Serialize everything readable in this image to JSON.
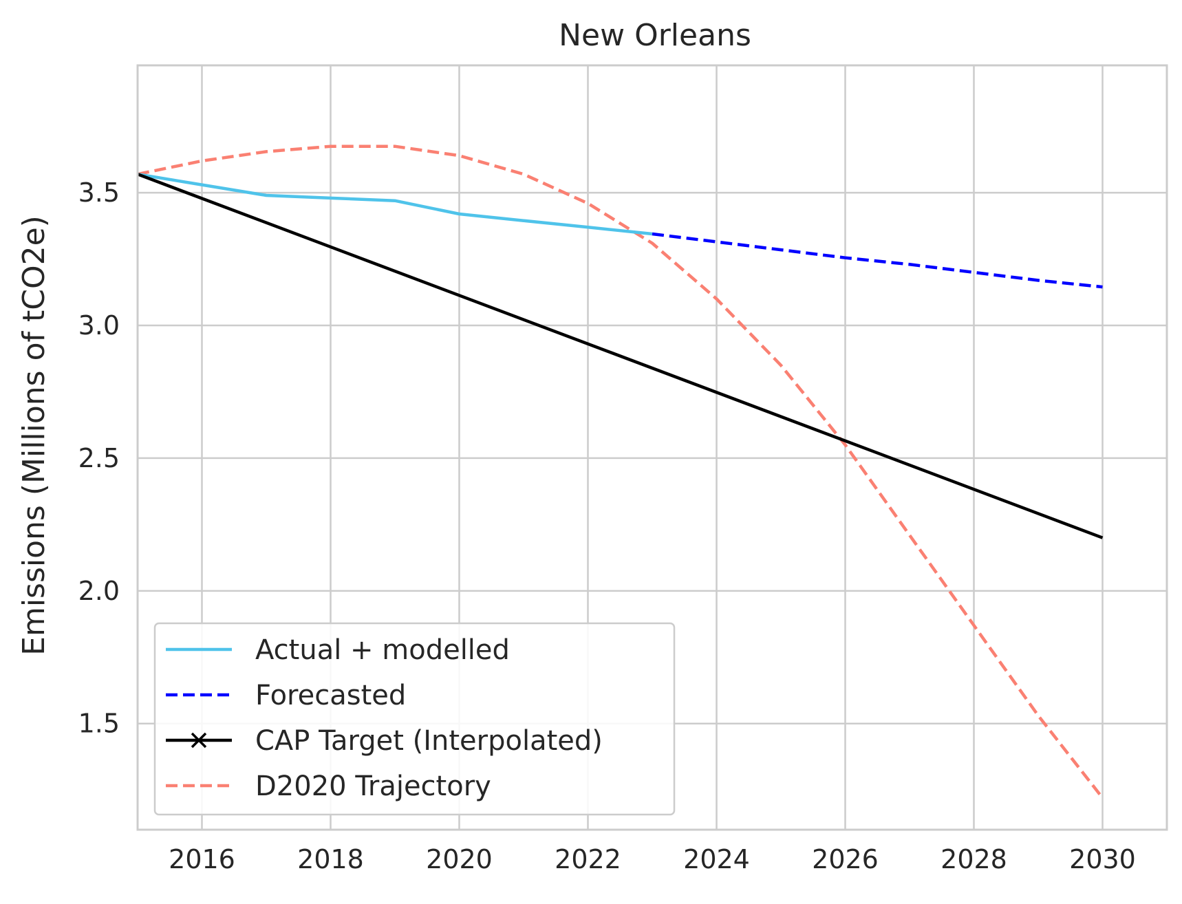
{
  "chart_data": {
    "type": "line",
    "title": "New Orleans",
    "xlabel": "",
    "ylabel": "Emissions (Millions of tCO2e)",
    "xlim": [
      2015,
      2031
    ],
    "ylim": [
      1.1,
      3.98
    ],
    "x_ticks": [
      2016,
      2018,
      2020,
      2022,
      2024,
      2026,
      2028,
      2030
    ],
    "y_ticks": [
      1.5,
      2.0,
      2.5,
      3.0,
      3.5
    ],
    "y_tick_labels": [
      "1.5",
      "2.0",
      "2.5",
      "3.0",
      "3.5"
    ],
    "grid": true,
    "legend_position": "lower-left",
    "series": [
      {
        "name": "Actual + modelled",
        "color": "#4fc3ea",
        "style": "solid",
        "x": [
          2015,
          2016,
          2017,
          2018,
          2019,
          2020,
          2021,
          2022,
          2023
        ],
        "y": [
          3.57,
          3.53,
          3.49,
          3.48,
          3.47,
          3.42,
          3.395,
          3.37,
          3.345
        ]
      },
      {
        "name": "Forecasted",
        "color": "#0000ff",
        "style": "dashed",
        "x": [
          2023,
          2024,
          2025,
          2026,
          2027,
          2028,
          2029,
          2030
        ],
        "y": [
          3.345,
          3.315,
          3.285,
          3.255,
          3.23,
          3.2,
          3.17,
          3.145
        ]
      },
      {
        "name": "CAP Target (Interpolated)",
        "color": "#000000",
        "style": "solid",
        "marker": "x",
        "x": [
          2015,
          2030
        ],
        "y": [
          3.57,
          2.2
        ]
      },
      {
        "name": "D2020 Trajectory",
        "color": "#fa8072",
        "style": "dashed",
        "x": [
          2015,
          2016,
          2017,
          2018,
          2019,
          2020,
          2021,
          2022,
          2023,
          2024,
          2025,
          2026,
          2027,
          2028,
          2029,
          2030
        ],
        "y": [
          3.57,
          3.62,
          3.655,
          3.675,
          3.675,
          3.64,
          3.57,
          3.46,
          3.31,
          3.1,
          2.85,
          2.55,
          2.21,
          1.87,
          1.53,
          1.22
        ]
      }
    ]
  }
}
